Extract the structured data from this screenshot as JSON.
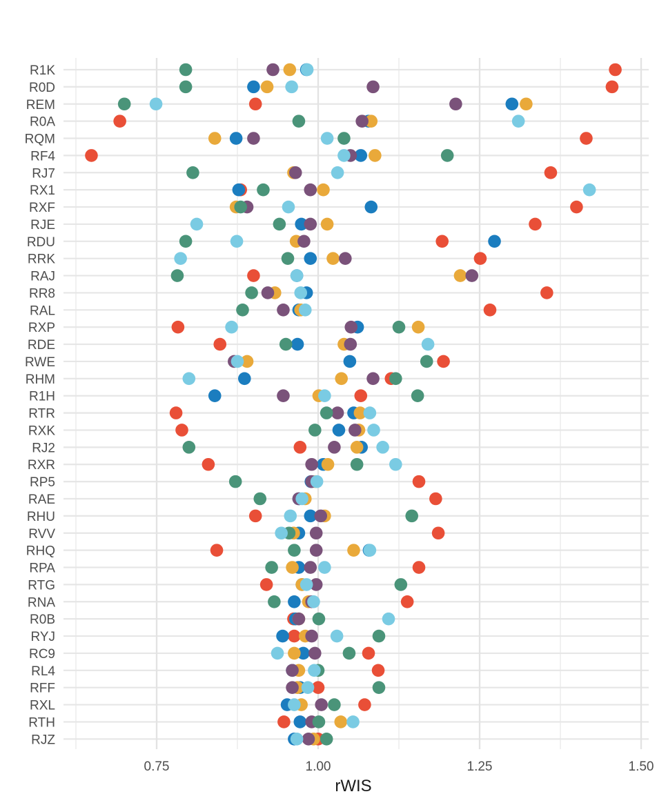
{
  "chart_data": {
    "type": "scatter",
    "title": "",
    "xlabel": "rWIS",
    "ylabel": "",
    "xlim": [
      0.6,
      1.5
    ],
    "x_ticks": [
      0.75,
      1.0,
      1.25,
      1.5
    ],
    "x_tick_labels": [
      "0.75",
      "1.00",
      "1.25",
      "1.50"
    ],
    "grid": true,
    "legend": "none",
    "categories": [
      "R1K",
      "R0D",
      "REM",
      "R0A",
      "RQM",
      "RF4",
      "RJ7",
      "RX1",
      "RXF",
      "RJE",
      "RDU",
      "RRK",
      "RAJ",
      "RR8",
      "RAL",
      "RXP",
      "RDE",
      "RWE",
      "RHM",
      "R1H",
      "RTR",
      "RXK",
      "RJ2",
      "RXR",
      "RP5",
      "RAE",
      "RHU",
      "RVV",
      "RHQ",
      "RPA",
      "RTG",
      "RNA",
      "R0B",
      "RYJ",
      "RC9",
      "RL4",
      "RFF",
      "RXL",
      "RTH",
      "RJZ"
    ],
    "series": [
      {
        "color": "#E94F37",
        "values": [
          1.46,
          1.455,
          0.903,
          0.693,
          1.415,
          0.649,
          1.36,
          0.88,
          1.4,
          1.336,
          1.192,
          1.251,
          0.9,
          1.354,
          1.266,
          0.783,
          0.848,
          1.194,
          1.113,
          1.066,
          0.78,
          0.789,
          0.972,
          0.83,
          1.156,
          1.182,
          0.903,
          1.186,
          0.843,
          1.156,
          0.92,
          1.138,
          0.962,
          0.963,
          1.078,
          1.093,
          1.0,
          1.072,
          0.947,
          1.0
        ]
      },
      {
        "color": "#1B7DBF",
        "values": [
          0.982,
          0.9,
          1.3,
          1.078,
          0.873,
          1.066,
          0.963,
          0.877,
          1.082,
          0.974,
          1.273,
          0.988,
          0.967,
          0.982,
          0.97,
          1.061,
          0.968,
          1.049,
          0.886,
          0.84,
          1.055,
          1.032,
          1.067,
          1.008,
          0.989,
          0.97,
          0.988,
          0.97,
          1.079,
          0.97,
          0.975,
          0.963,
          0.965,
          0.945,
          0.977,
          0.96,
          0.972,
          0.952,
          0.972,
          0.963
        ]
      },
      {
        "color": "#E9A93A",
        "values": [
          0.956,
          0.921,
          1.322,
          1.082,
          0.84,
          1.088,
          0.962,
          1.008,
          0.873,
          1.014,
          0.966,
          1.023,
          1.22,
          0.933,
          0.973,
          1.155,
          1.04,
          0.89,
          1.036,
          1.001,
          1.065,
          1.063,
          1.06,
          1.015,
          0.996,
          0.98,
          1.01,
          0.962,
          1.055,
          0.96,
          0.975,
          0.985,
          0.97,
          0.98,
          0.963,
          0.97,
          0.968,
          0.974,
          1.035,
          0.993
        ]
      },
      {
        "color": "#7A527A",
        "values": [
          0.93,
          1.085,
          1.213,
          1.068,
          0.9,
          1.05,
          0.965,
          0.988,
          0.89,
          0.988,
          0.978,
          1.042,
          1.238,
          0.922,
          0.946,
          1.051,
          1.05,
          0.87,
          1.085,
          0.946,
          1.03,
          1.057,
          1.025,
          0.99,
          0.99,
          0.97,
          1.004,
          0.997,
          0.997,
          0.988,
          0.997,
          0.99,
          0.97,
          0.99,
          0.995,
          0.96,
          0.96,
          1.005,
          0.99,
          0.985
        ]
      },
      {
        "color": "#4A9479",
        "values": [
          0.795,
          0.795,
          0.7,
          0.97,
          1.04,
          1.2,
          0.806,
          0.915,
          0.88,
          0.94,
          0.795,
          0.953,
          0.782,
          0.897,
          0.883,
          1.125,
          0.95,
          1.168,
          1.12,
          1.154,
          1.013,
          0.995,
          0.8,
          1.06,
          0.872,
          0.91,
          1.145,
          0.955,
          0.963,
          0.928,
          1.128,
          0.932,
          1.001,
          1.094,
          1.048,
          1.0,
          1.094,
          1.025,
          1.001,
          1.013
        ]
      },
      {
        "color": "#7ACBE3",
        "values": [
          0.983,
          0.959,
          0.749,
          1.31,
          1.014,
          1.04,
          1.03,
          1.42,
          0.954,
          0.812,
          0.874,
          0.787,
          0.967,
          0.973,
          0.98,
          0.866,
          1.17,
          0.875,
          0.8,
          1.01,
          1.08,
          1.086,
          1.1,
          1.12,
          0.998,
          0.975,
          0.957,
          0.943,
          1.08,
          1.01,
          0.982,
          0.993,
          1.109,
          1.029,
          0.937,
          0.994,
          0.984,
          0.963,
          1.054,
          0.967
        ]
      }
    ]
  }
}
